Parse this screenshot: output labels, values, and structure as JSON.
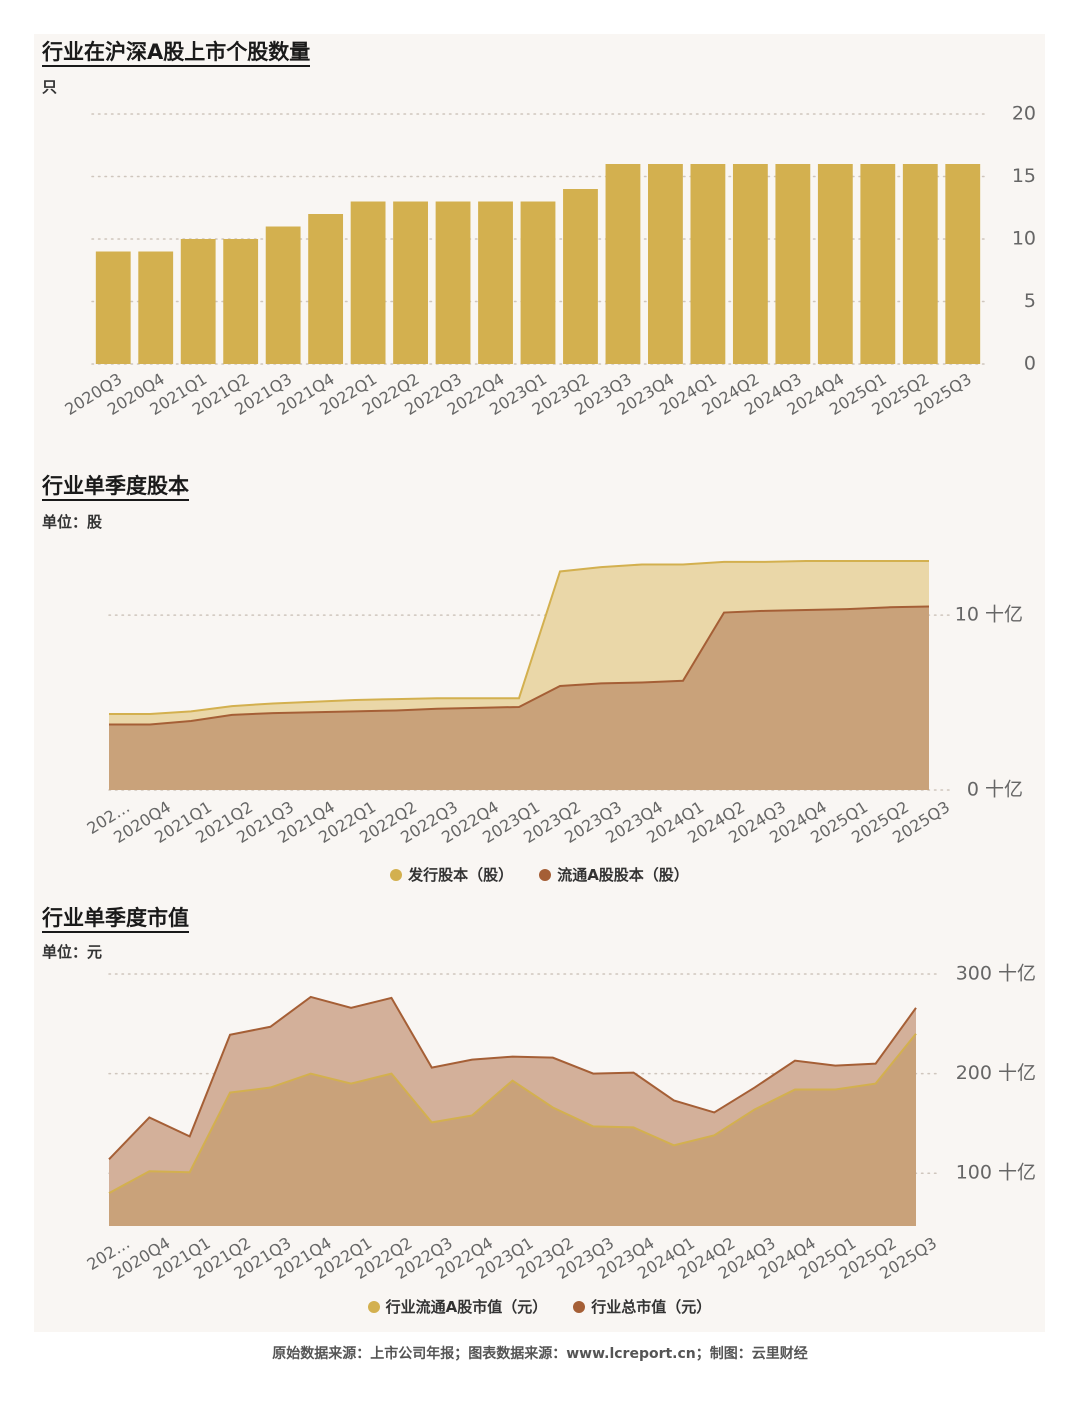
{
  "colors": {
    "gold": "#d3b04f",
    "gold_light": "#ead7a8",
    "brown_fill": "#c9a27a",
    "brown": "#a55f36",
    "brown_area2": "#d3b09a",
    "grid": "#cfc6bd",
    "tick": "#666666"
  },
  "chart1": {
    "title": "行业在沪深A股上市个股数量",
    "unit": "只",
    "chart_data": {
      "type": "bar",
      "title": "行业在沪深A股上市个股数量",
      "ylabel": "只",
      "ylim": [
        0,
        20
      ],
      "yticks": [
        "0",
        "5",
        "10",
        "15",
        "20"
      ],
      "categories": [
        "2020Q3",
        "2020Q4",
        "2021Q1",
        "2021Q2",
        "2021Q3",
        "2021Q4",
        "2022Q1",
        "2022Q2",
        "2022Q3",
        "2022Q4",
        "2023Q1",
        "2023Q2",
        "2023Q3",
        "2023Q4",
        "2024Q1",
        "2024Q2",
        "2024Q3",
        "2024Q4",
        "2025Q1",
        "2025Q2",
        "2025Q3"
      ],
      "values": [
        9,
        9,
        10,
        10,
        11,
        12,
        13,
        13,
        13,
        13,
        13,
        14,
        16,
        16,
        16,
        16,
        16,
        16,
        16,
        16,
        16
      ]
    }
  },
  "chart2": {
    "title": "行业单季度股本",
    "unit": "单位：股",
    "chart_data": {
      "type": "area",
      "title": "行业单季度股本",
      "ylim": [
        0,
        13.5
      ],
      "yticks": [
        "0 十亿",
        "10 十亿"
      ],
      "yunit": "十亿",
      "xticks": [
        "202…",
        "2020Q4",
        "2021Q1",
        "2021Q2",
        "2021Q3",
        "2021Q4",
        "2022Q1",
        "2022Q2",
        "2022Q3",
        "2022Q4",
        "2023Q1",
        "2023Q2",
        "2023Q3",
        "2023Q4",
        "2024Q1",
        "2024Q2",
        "2024Q3",
        "2024Q4",
        "2025Q1",
        "2025Q2",
        "2025Q3"
      ],
      "legend_position": "bottom",
      "series": [
        {
          "name": "发行股本（股）",
          "values": [
            4.35,
            4.35,
            4.5,
            4.8,
            4.95,
            5.05,
            5.15,
            5.2,
            5.25,
            5.25,
            5.25,
            12.5,
            12.75,
            12.9,
            12.9,
            13.05,
            13.05,
            13.1,
            13.1,
            13.1,
            13.1
          ]
        },
        {
          "name": "流通A股股本（股）",
          "values": [
            3.75,
            3.75,
            3.95,
            4.3,
            4.4,
            4.45,
            4.5,
            4.55,
            4.65,
            4.7,
            4.75,
            5.95,
            6.1,
            6.15,
            6.25,
            10.15,
            10.25,
            10.3,
            10.35,
            10.45,
            10.5
          ]
        }
      ]
    }
  },
  "chart3": {
    "title": "行业单季度市值",
    "unit": "单位：元",
    "chart_data": {
      "type": "area",
      "title": "行业单季度市值",
      "ylim": [
        47,
        300
      ],
      "yticks": [
        "100 十亿",
        "200 十亿",
        "300 十亿"
      ],
      "yunit": "十亿",
      "xticks": [
        "202…",
        "2020Q4",
        "2021Q1",
        "2021Q2",
        "2021Q3",
        "2021Q4",
        "2022Q1",
        "2022Q2",
        "2022Q3",
        "2022Q4",
        "2023Q1",
        "2023Q2",
        "2023Q3",
        "2023Q4",
        "2024Q1",
        "2024Q2",
        "2024Q3",
        "2024Q4",
        "2025Q1",
        "2025Q2",
        "2025Q3"
      ],
      "legend_position": "bottom",
      "series": [
        {
          "name": "行业流通A股市值（元）",
          "values": [
            80,
            102,
            101,
            181,
            186,
            200,
            190,
            200,
            151,
            158,
            193,
            166,
            147,
            146,
            128,
            138,
            164,
            184,
            184,
            190,
            240
          ]
        },
        {
          "name": "行业总市值（元）",
          "values": [
            114,
            156,
            137,
            239,
            247,
            277,
            266,
            276,
            206,
            214,
            217,
            216,
            200,
            201,
            173,
            161,
            186,
            213,
            208,
            210,
            266
          ]
        }
      ]
    }
  },
  "footer": "原始数据来源：上市公司年报；图表数据来源：www.lcreport.cn；制图：云里财经"
}
